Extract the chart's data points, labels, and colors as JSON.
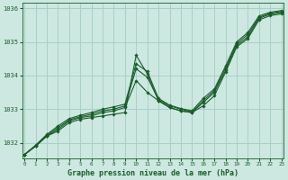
{
  "title": "Graphe pression niveau de la mer (hPa)",
  "bg_color": "#cce8e0",
  "line_color": "#1a5c2a",
  "grid_color": "#a8d0c8",
  "x_ticks": [
    0,
    1,
    2,
    3,
    4,
    5,
    6,
    7,
    8,
    9,
    10,
    11,
    12,
    13,
    14,
    15,
    16,
    17,
    18,
    19,
    20,
    21,
    22,
    23
  ],
  "y_ticks": [
    1032,
    1033,
    1034,
    1035,
    1036
  ],
  "ylim": [
    1031.55,
    1036.15
  ],
  "xlim": [
    -0.2,
    23.2
  ],
  "series": [
    [
      1031.65,
      1031.9,
      1032.2,
      1032.35,
      1032.6,
      1032.7,
      1032.75,
      1032.8,
      1032.85,
      1032.9,
      1034.6,
      1034.05,
      1033.25,
      1033.05,
      1032.95,
      1032.9,
      1033.1,
      1033.4,
      1034.1,
      1034.85,
      1035.1,
      1035.65,
      1035.78,
      1035.83
    ],
    [
      1031.65,
      1031.9,
      1032.2,
      1032.4,
      1032.65,
      1032.75,
      1032.8,
      1032.9,
      1032.95,
      1033.05,
      1033.85,
      1033.5,
      1033.25,
      1033.05,
      1032.95,
      1032.9,
      1033.2,
      1033.5,
      1034.15,
      1034.9,
      1035.15,
      1035.7,
      1035.82,
      1035.87
    ],
    [
      1031.65,
      1031.92,
      1032.22,
      1032.45,
      1032.68,
      1032.78,
      1032.85,
      1032.95,
      1033.0,
      1033.1,
      1034.2,
      1033.95,
      1033.28,
      1033.1,
      1033.0,
      1032.92,
      1033.25,
      1033.55,
      1034.22,
      1034.95,
      1035.22,
      1035.73,
      1035.85,
      1035.9
    ],
    [
      1031.65,
      1031.93,
      1032.25,
      1032.5,
      1032.72,
      1032.82,
      1032.9,
      1033.0,
      1033.07,
      1033.15,
      1034.35,
      1034.12,
      1033.32,
      1033.12,
      1033.02,
      1032.95,
      1033.32,
      1033.6,
      1034.28,
      1035.0,
      1035.28,
      1035.77,
      1035.88,
      1035.93
    ]
  ]
}
